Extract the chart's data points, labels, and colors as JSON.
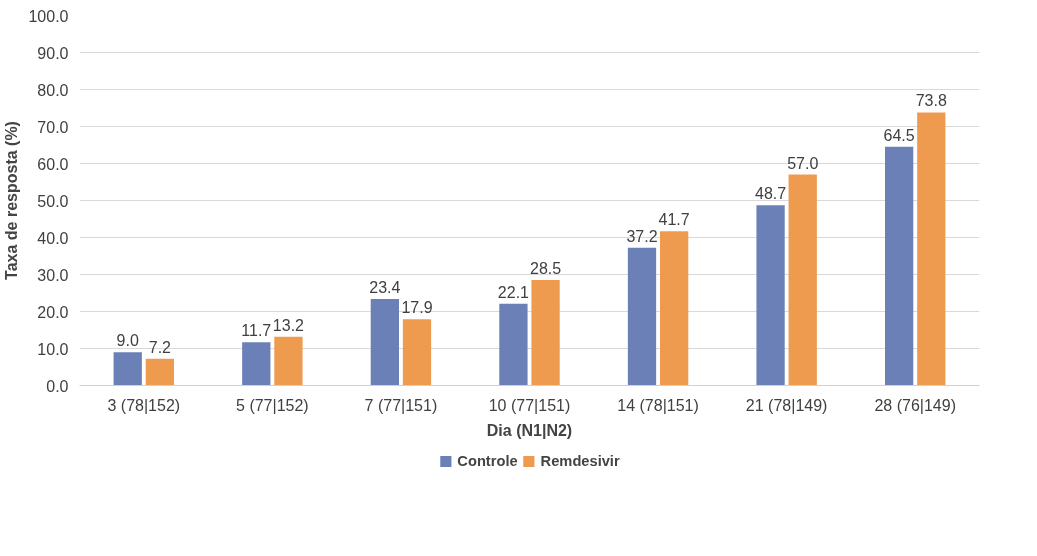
{
  "chart_data": {
    "type": "bar",
    "xlabel": "Dia (N1|N2)",
    "ylabel": "Taxa de resposta (%)",
    "categories": [
      "3 (78|152)",
      "5 (77|152)",
      "7 (77|151)",
      "10 (77|151)",
      "14 (78|151)",
      "21 (78|149)",
      "28 (76|149)"
    ],
    "series": [
      {
        "name": "Controle",
        "color": "#6b80b6",
        "values": [
          9.0,
          11.7,
          23.4,
          22.1,
          37.2,
          48.7,
          64.5
        ],
        "value_labels": [
          "9.0",
          "11.7",
          "23.4",
          "22.1",
          "37.2",
          "48.7",
          "64.5"
        ]
      },
      {
        "name": "Remdesivir",
        "color": "#ee9b4f",
        "values": [
          7.2,
          13.2,
          17.9,
          28.5,
          41.7,
          57.0,
          73.8
        ],
        "value_labels": [
          "7.2",
          "13.2",
          "17.9",
          "28.5",
          "41.7",
          "57.0",
          "73.8"
        ]
      }
    ],
    "ylim": [
      0,
      100
    ],
    "yticks": [
      {
        "value": 0,
        "label": "0.0"
      },
      {
        "value": 10,
        "label": "10.0"
      },
      {
        "value": 20,
        "label": "20.0"
      },
      {
        "value": 30,
        "label": "30.0"
      },
      {
        "value": 40,
        "label": "40.0"
      },
      {
        "value": 50,
        "label": "50.0"
      },
      {
        "value": 60,
        "label": "60.0"
      },
      {
        "value": 70,
        "label": "70.0"
      },
      {
        "value": 80,
        "label": "80.0"
      },
      {
        "value": 90,
        "label": "90.0"
      },
      {
        "value": 100,
        "label": "100.0"
      }
    ],
    "grid": "y",
    "legend": "bottom"
  }
}
